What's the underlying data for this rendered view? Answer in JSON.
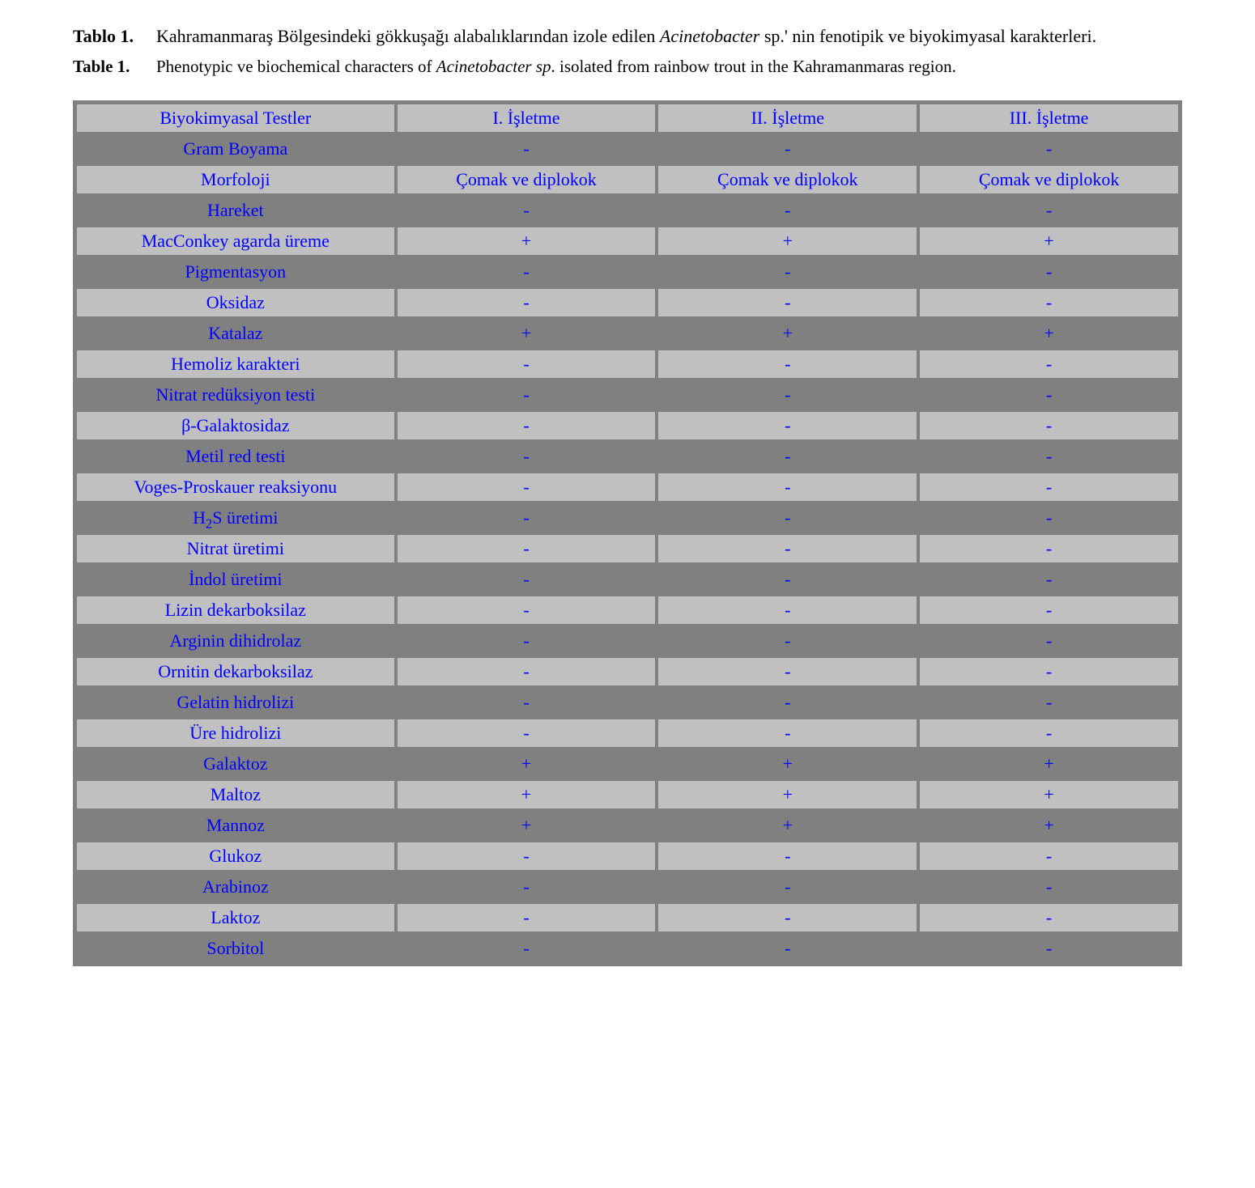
{
  "captions": {
    "tr_label": "Tablo 1.",
    "tr_text_before_italic": "Kahramanmaraş Bölgesindeki gökkuşağı alabalıklarından izole edilen ",
    "tr_italic": "Acinetobacter",
    "tr_text_after_italic": " sp.' nin fenotipik ve biyokimyasal karakterleri.",
    "en_label": "Table 1.",
    "en_text_before_italic": "Phenotypic ve biochemical characters of ",
    "en_italic": "Acinetobacter sp",
    "en_text_after_italic": ". isolated from rainbow trout in the Kahramanmaras region."
  },
  "table": {
    "columns": [
      "Biyokimyasal Testler",
      "I. İşletme",
      "II. İşletme",
      "III. İşletme"
    ],
    "rows": [
      {
        "label": "Gram Boyama",
        "c1": "-",
        "c2": "-",
        "c3": "-"
      },
      {
        "label": "Morfoloji",
        "c1": "Çomak ve diplokok",
        "c2": "Çomak ve diplokok",
        "c3": "Çomak ve diplokok"
      },
      {
        "label": "Hareket",
        "c1": "-",
        "c2": "-",
        "c3": "-"
      },
      {
        "label": "MacConkey agarda üreme",
        "c1": "+",
        "c2": "+",
        "c3": "+"
      },
      {
        "label": "Pigmentasyon",
        "c1": "-",
        "c2": "-",
        "c3": "-"
      },
      {
        "label": "Oksidaz",
        "c1": "-",
        "c2": "-",
        "c3": "-"
      },
      {
        "label": "Katalaz",
        "c1": "+",
        "c2": "+",
        "c3": "+"
      },
      {
        "label": "Hemoliz karakteri",
        "c1": "-",
        "c2": "-",
        "c3": "-"
      },
      {
        "label": "Nitrat redüksiyon testi",
        "c1": "-",
        "c2": "-",
        "c3": "-"
      },
      {
        "label": "β-Galaktosidaz",
        "c1": "-",
        "c2": "-",
        "c3": "-"
      },
      {
        "label": "Metil red testi",
        "c1": "-",
        "c2": "-",
        "c3": "-"
      },
      {
        "label": "Voges-Proskauer reaksiyonu",
        "c1": "-",
        "c2": "-",
        "c3": "-"
      },
      {
        "label_html": "H<span class=\"sub\">2</span>S üretimi",
        "c1": "-",
        "c2": "-",
        "c3": "-"
      },
      {
        "label": "Nitrat üretimi",
        "c1": "-",
        "c2": "-",
        "c3": "-"
      },
      {
        "label": "İndol üretimi",
        "c1": "-",
        "c2": "-",
        "c3": "-"
      },
      {
        "label": "Lizin dekarboksilaz",
        "c1": "-",
        "c2": "-",
        "c3": "-"
      },
      {
        "label": "Arginin dihidrolaz",
        "c1": "-",
        "c2": "-",
        "c3": "-"
      },
      {
        "label": "Ornitin dekarboksilaz",
        "c1": "-",
        "c2": "-",
        "c3": "-"
      },
      {
        "label": "Gelatin hidrolizi",
        "c1": "-",
        "c2": "-",
        "c3": "-"
      },
      {
        "label": "Üre hidrolizi",
        "c1": "-",
        "c2": "-",
        "c3": "-"
      },
      {
        "label": "Galaktoz",
        "c1": "+",
        "c2": "+",
        "c3": "+"
      },
      {
        "label": "Maltoz",
        "c1": "+",
        "c2": "+",
        "c3": "+"
      },
      {
        "label": "Mannoz",
        "c1": "+",
        "c2": "+",
        "c3": "+"
      },
      {
        "label": "Glukoz",
        "c1": "-",
        "c2": "-",
        "c3": "-"
      },
      {
        "label": "Arabinoz",
        "c1": "-",
        "c2": "-",
        "c3": "-"
      },
      {
        "label": "Laktoz",
        "c1": "-",
        "c2": "-",
        "c3": "-"
      },
      {
        "label": "Sorbitol",
        "c1": "-",
        "c2": "-",
        "c3": "-"
      }
    ],
    "colors": {
      "text": "#0000ff",
      "light_bg": "#c0c0c0",
      "dark_bg": "#808080",
      "border": "#808080"
    },
    "header_row_style": "light"
  }
}
